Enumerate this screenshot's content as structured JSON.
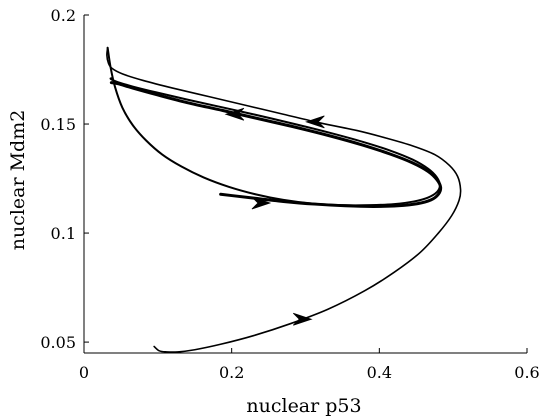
{
  "chart_data": {
    "type": "line",
    "title": "",
    "xlabel": "nuclear p53",
    "ylabel": "nuclear Mdm2",
    "xlim": [
      0,
      0.6
    ],
    "ylim": [
      0.045,
      0.2
    ],
    "xticks": [
      0,
      0.2,
      0.4,
      0.6
    ],
    "xtick_labels": [
      "0",
      "0.2",
      "0.4",
      "0.6"
    ],
    "yticks": [
      0.05,
      0.1,
      0.15,
      0.2
    ],
    "ytick_labels": [
      "0.05",
      "0.1",
      "0.15",
      "0.2"
    ],
    "grid": false,
    "legend": "none",
    "line_color": "#000000",
    "series": [
      {
        "style": "thin",
        "x": [
          0.095,
          0.102,
          0.112,
          0.127,
          0.15,
          0.185,
          0.23,
          0.28,
          0.33,
          0.38,
          0.42,
          0.455,
          0.48,
          0.498,
          0.508,
          0.51,
          0.506,
          0.495,
          0.475,
          0.445,
          0.41,
          0.37,
          0.32,
          0.27,
          0.22,
          0.17,
          0.12,
          0.08,
          0.052,
          0.038,
          0.033,
          0.031,
          0.032
        ],
        "y": [
          0.048,
          0.046,
          0.0455,
          0.0455,
          0.0465,
          0.049,
          0.053,
          0.0585,
          0.065,
          0.0735,
          0.082,
          0.091,
          0.1,
          0.108,
          0.115,
          0.12,
          0.126,
          0.131,
          0.136,
          0.14,
          0.1435,
          0.147,
          0.1505,
          0.1545,
          0.1585,
          0.1625,
          0.1665,
          0.17,
          0.173,
          0.1755,
          0.178,
          0.1815,
          0.185
        ]
      },
      {
        "style": "medium",
        "x": [
          0.032,
          0.036,
          0.042,
          0.052,
          0.066,
          0.084,
          0.106,
          0.132,
          0.162,
          0.196,
          0.232,
          0.27,
          0.31,
          0.35,
          0.388,
          0.42,
          0.447,
          0.466,
          0.478,
          0.482,
          0.478,
          0.466,
          0.445,
          0.415,
          0.378,
          0.335,
          0.288,
          0.238,
          0.188,
          0.14,
          0.098,
          0.066,
          0.046,
          0.038,
          0.036,
          0.037
        ],
        "y": [
          0.185,
          0.176,
          0.167,
          0.1575,
          0.1495,
          0.1425,
          0.136,
          0.1305,
          0.1255,
          0.1212,
          0.1178,
          0.1152,
          0.1135,
          0.1128,
          0.1128,
          0.1133,
          0.1145,
          0.1163,
          0.1188,
          0.1218,
          0.1255,
          0.1295,
          0.1337,
          0.1378,
          0.1418,
          0.1458,
          0.1498,
          0.1538,
          0.1576,
          0.1612,
          0.1645,
          0.1672,
          0.1692,
          0.1703,
          0.1708,
          0.171
        ]
      },
      {
        "style": "thick",
        "x": [
          0.037,
          0.046,
          0.066,
          0.098,
          0.14,
          0.188,
          0.238,
          0.288,
          0.335,
          0.378,
          0.415,
          0.445,
          0.466,
          0.478,
          0.483,
          0.48,
          0.47,
          0.452,
          0.425,
          0.392,
          0.354,
          0.312,
          0.27,
          0.23,
          0.2,
          0.185
        ],
        "y": [
          0.169,
          0.1685,
          0.1665,
          0.1635,
          0.1598,
          0.1562,
          0.1523,
          0.1484,
          0.1444,
          0.1403,
          0.1362,
          0.1322,
          0.1283,
          0.1245,
          0.121,
          0.1178,
          0.1152,
          0.1135,
          0.1125,
          0.1122,
          0.1125,
          0.1133,
          0.1145,
          0.116,
          0.1172,
          0.1178
        ]
      }
    ],
    "arrows": [
      {
        "x": 0.297,
        "y": 0.0605,
        "direction": "right"
      },
      {
        "x": 0.241,
        "y": 0.1138,
        "direction": "right"
      },
      {
        "x": 0.312,
        "y": 0.151,
        "direction": "left"
      },
      {
        "x": 0.203,
        "y": 0.1545,
        "direction": "left"
      }
    ]
  }
}
